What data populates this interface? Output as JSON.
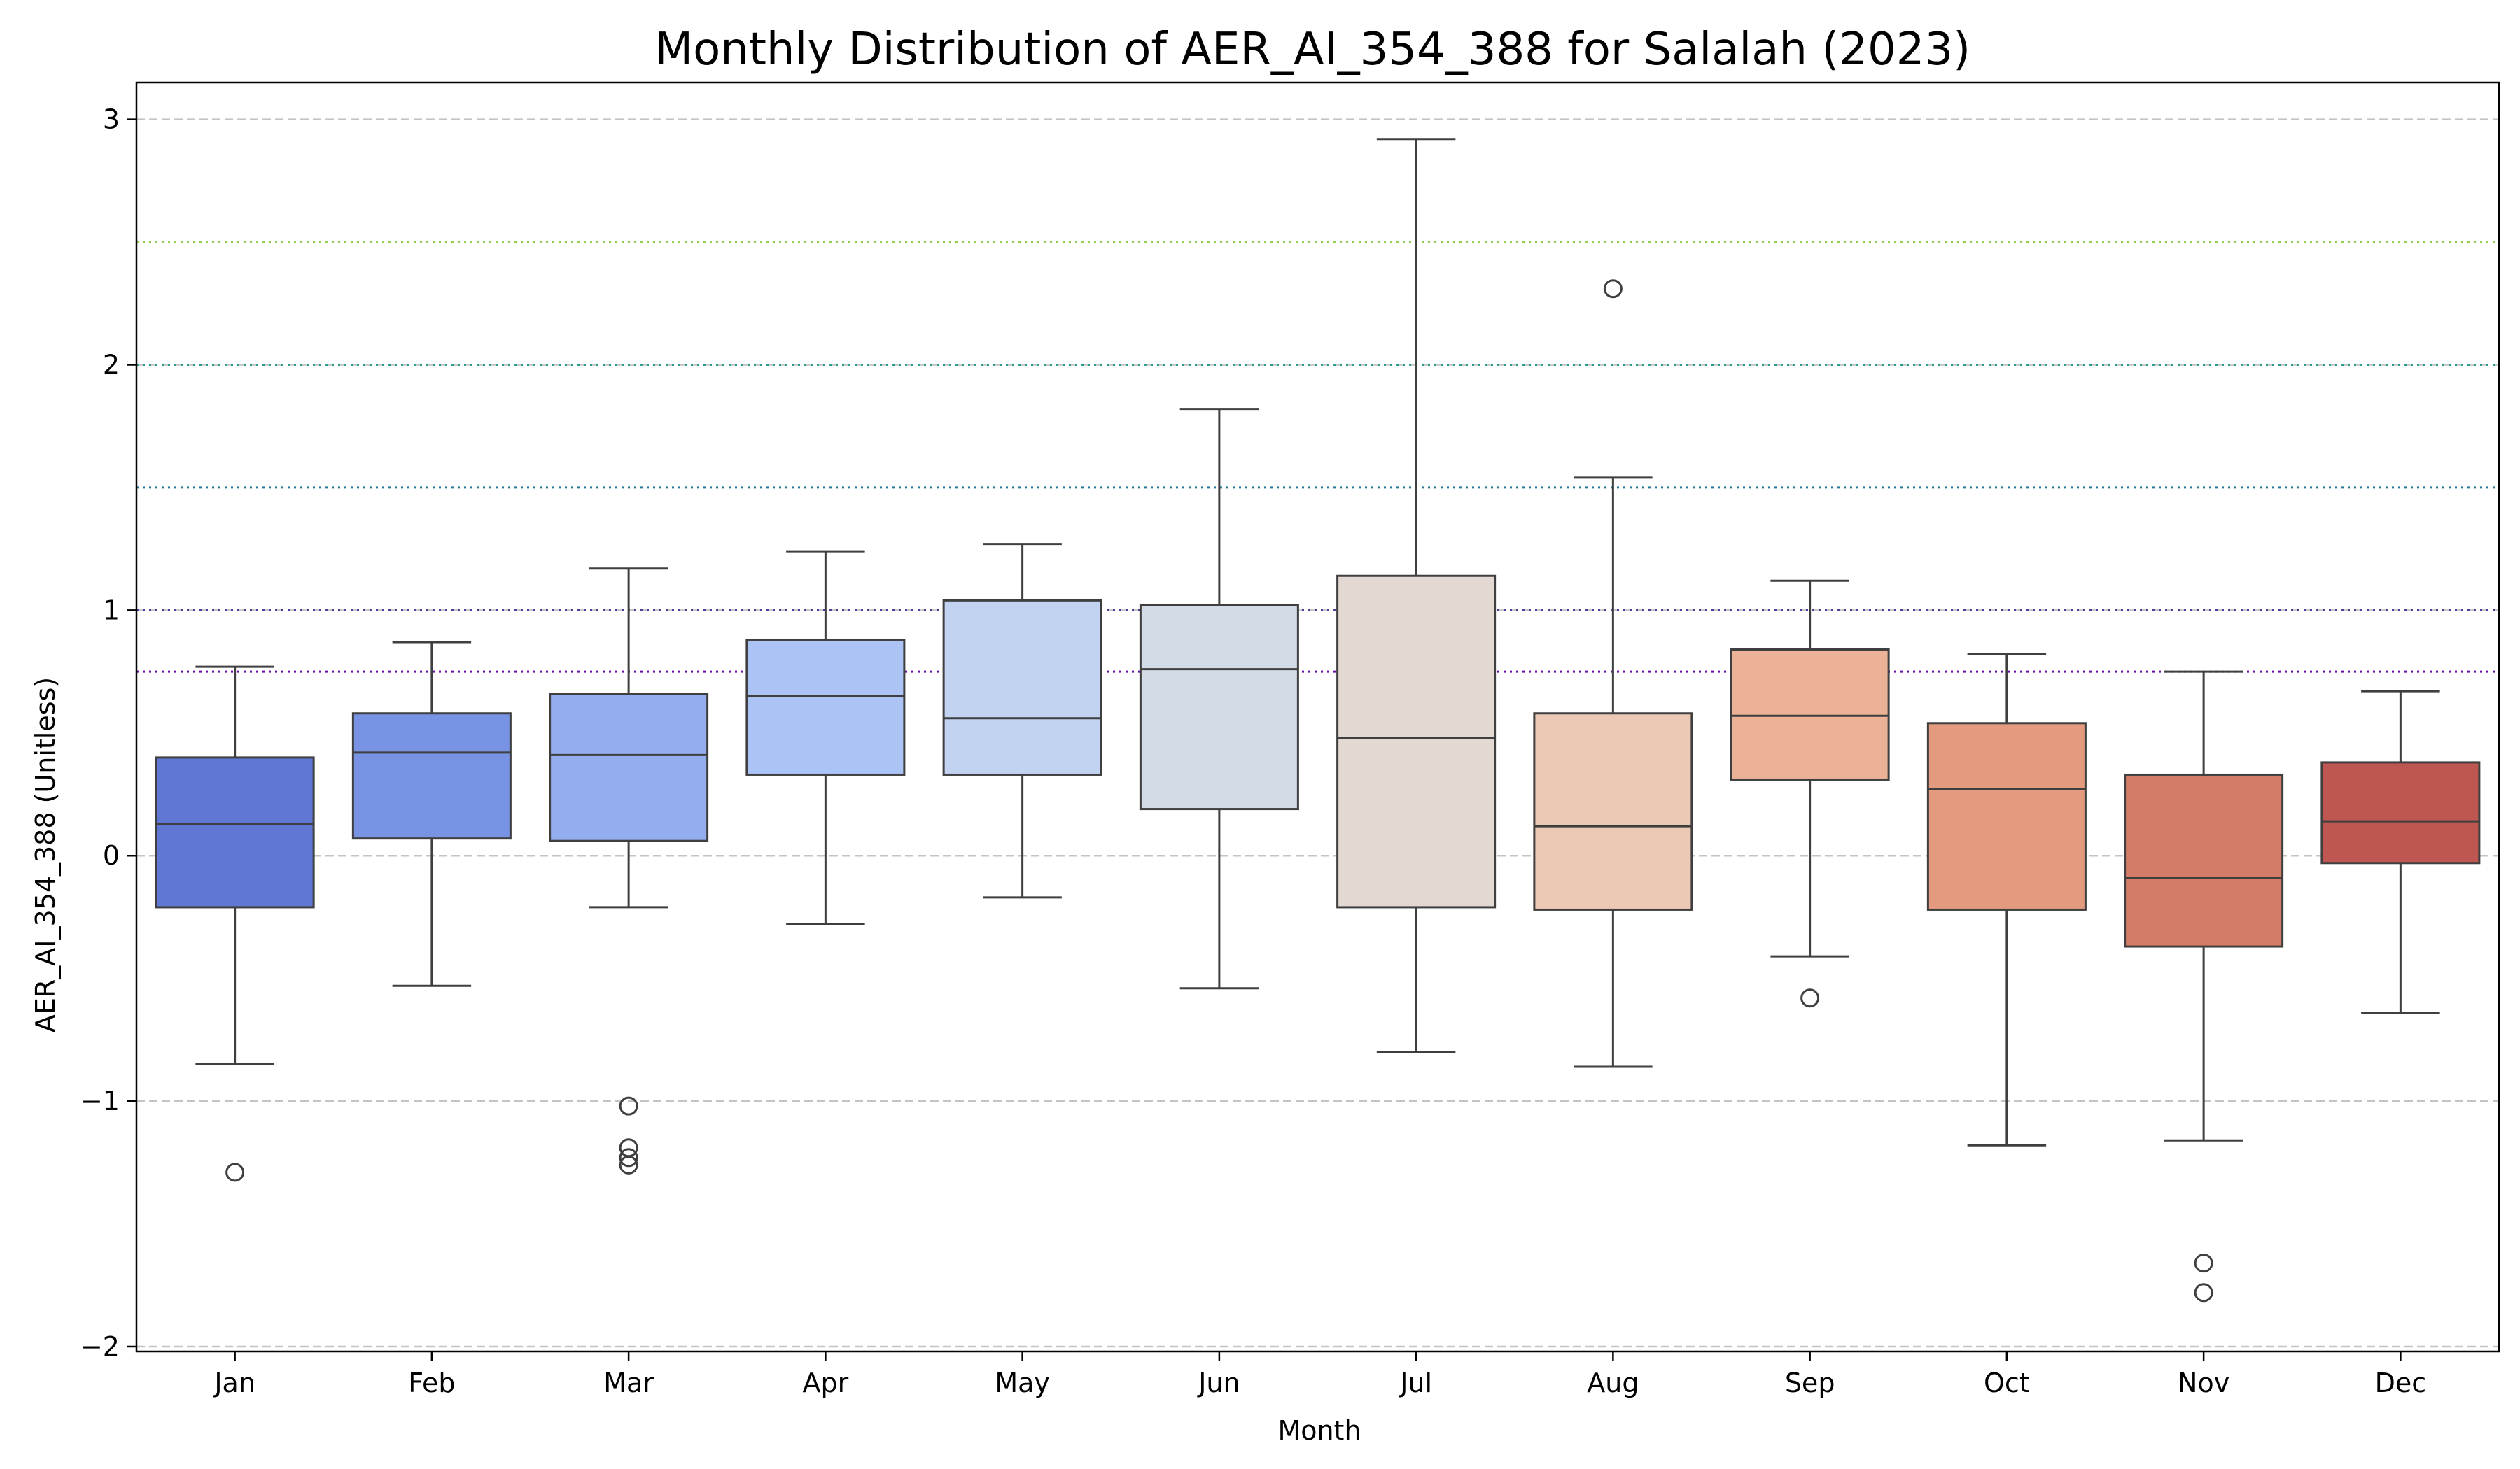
{
  "chart_data": {
    "type": "box",
    "title": "Monthly Distribution of AER_AI_354_388 for Salalah (2023)",
    "xlabel": "Month",
    "ylabel": "AER_AI_354_388 (Unitless)",
    "ylim": [
      -2.02,
      3.15
    ],
    "yticks": [
      -2,
      -1,
      0,
      1,
      2,
      3
    ],
    "ytick_labels": [
      "−2",
      "−1",
      "0",
      "1",
      "2",
      "3"
    ],
    "grid": "y-dashed",
    "reference_lines": [
      {
        "value": 2.5,
        "color": "#8fd14f"
      },
      {
        "value": 2.0,
        "color": "#2a9d8f"
      },
      {
        "value": 1.5,
        "color": "#2b7a9b"
      },
      {
        "value": 1.0,
        "color": "#4b3f9e"
      },
      {
        "value": 0.75,
        "color": "#6a0dad"
      }
    ],
    "categories": [
      "Jan",
      "Feb",
      "Mar",
      "Apr",
      "May",
      "Jun",
      "Jul",
      "Aug",
      "Sep",
      "Oct",
      "Nov",
      "Dec"
    ],
    "boxes": [
      {
        "month": "Jan",
        "whisker_low": -0.85,
        "q1": -0.21,
        "median": 0.13,
        "q3": 0.4,
        "whisker_high": 0.77,
        "outliers": [
          -1.29
        ],
        "color": "#6077d3"
      },
      {
        "month": "Feb",
        "whisker_low": -0.53,
        "q1": 0.07,
        "median": 0.42,
        "q3": 0.58,
        "whisker_high": 0.87,
        "outliers": [],
        "color": "#7893e4"
      },
      {
        "month": "Mar",
        "whisker_low": -0.21,
        "q1": 0.06,
        "median": 0.41,
        "q3": 0.66,
        "whisker_high": 1.17,
        "outliers": [
          -1.02,
          -1.19,
          -1.23,
          -1.26
        ],
        "color": "#94adee"
      },
      {
        "month": "Apr",
        "whisker_low": -0.28,
        "q1": 0.33,
        "median": 0.65,
        "q3": 0.88,
        "whisker_high": 1.24,
        "outliers": [],
        "color": "#acc3f5"
      },
      {
        "month": "May",
        "whisker_low": -0.17,
        "q1": 0.33,
        "median": 0.56,
        "q3": 1.04,
        "whisker_high": 1.27,
        "outliers": [],
        "color": "#c2d3f2"
      },
      {
        "month": "Jun",
        "whisker_low": -0.54,
        "q1": 0.19,
        "median": 0.76,
        "q3": 1.02,
        "whisker_high": 1.82,
        "outliers": [],
        "color": "#d3dbe7"
      },
      {
        "month": "Jul",
        "whisker_low": -0.8,
        "q1": -0.21,
        "median": 0.48,
        "q3": 1.14,
        "whisker_high": 2.92,
        "outliers": [],
        "color": "#e4d8d2"
      },
      {
        "month": "Aug",
        "whisker_low": -0.86,
        "q1": -0.22,
        "median": 0.12,
        "q3": 0.58,
        "whisker_high": 1.54,
        "outliers": [
          2.31
        ],
        "color": "#ecc9b4"
      },
      {
        "month": "Sep",
        "whisker_low": -0.41,
        "q1": 0.31,
        "median": 0.57,
        "q3": 0.84,
        "whisker_high": 1.12,
        "outliers": [
          -0.58
        ],
        "color": "#ecb297"
      },
      {
        "month": "Oct",
        "whisker_low": -1.18,
        "q1": -0.22,
        "median": 0.27,
        "q3": 0.54,
        "whisker_high": 0.82,
        "outliers": [],
        "color": "#e49a7e"
      },
      {
        "month": "Nov",
        "whisker_low": -1.16,
        "q1": -0.37,
        "median": -0.09,
        "q3": 0.33,
        "whisker_high": 0.75,
        "outliers": [
          -1.66,
          -1.78
        ],
        "color": "#d47c68"
      },
      {
        "month": "Dec",
        "whisker_low": -0.64,
        "q1": -0.03,
        "median": 0.14,
        "q3": 0.38,
        "whisker_high": 0.67,
        "outliers": [],
        "color": "#be5752"
      }
    ]
  }
}
